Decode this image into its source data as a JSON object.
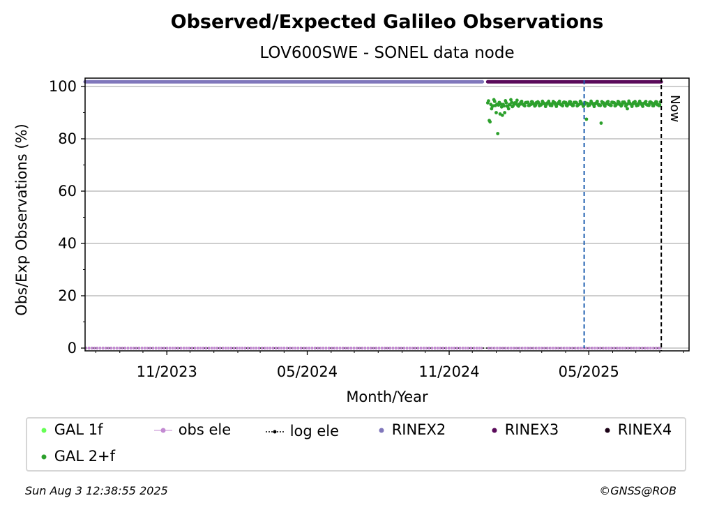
{
  "chart_data": {
    "type": "scatter",
    "title": "Observed/Expected Galileo Observations",
    "subtitle": "LOV600SWE - SONEL data node",
    "xlabel": "Month/Year",
    "ylabel": "Obs/Exp Observations (%)",
    "ylim": [
      0,
      100
    ],
    "xlim": [
      "2023-07-18",
      "2025-09-08"
    ],
    "yticks": [
      0,
      20,
      40,
      60,
      80,
      100
    ],
    "xticks": [
      {
        "date": "2023-11-01",
        "label": "11/2023"
      },
      {
        "date": "2024-05-01",
        "label": "05/2024"
      },
      {
        "date": "2024-11-01",
        "label": "11/2024"
      },
      {
        "date": "2025-05-01",
        "label": "05/2025"
      }
    ],
    "grid": "horizontal",
    "now_label": "Now",
    "now_date": "2025-08-03",
    "event_line_date": "2025-04-25",
    "colors": {
      "gal_1f": "#66ff55",
      "gal_2f": "#2ca02c",
      "obs_ele": "#c38ad2",
      "log_ele": "#000000",
      "rinex2": "#8077bb",
      "rinex3": "#5a0a5a",
      "rinex4": "#1a0015",
      "event_line": "#1f5fb0",
      "now_line": "#000000",
      "grid": "#b0b0b0"
    },
    "rinex_bars": [
      {
        "name": "RINEX2",
        "start": "2023-07-18",
        "end": "2024-12-14",
        "y": 101.8
      },
      {
        "name": "RINEX3",
        "start": "2024-12-21",
        "end": "2025-08-03",
        "y": 101.8
      }
    ],
    "obs_ele": [
      {
        "start": "2023-07-18",
        "end": "2024-12-14",
        "value": 0
      },
      {
        "start": "2024-12-21",
        "end": "2025-08-03",
        "value": 0
      }
    ],
    "log_ele": [
      {
        "start": "2023-07-18",
        "end": "2025-08-03",
        "value": 0
      }
    ],
    "gal_2f": {
      "start": "2024-12-21",
      "end": "2025-08-02",
      "base": 93.4,
      "outliers": [
        {
          "date": "2024-12-23",
          "value": 87
        },
        {
          "date": "2024-12-24",
          "value": 86.5
        },
        {
          "date": "2024-12-26",
          "value": 91.5
        },
        {
          "date": "2025-01-01",
          "value": 90
        },
        {
          "date": "2025-01-03",
          "value": 82
        },
        {
          "date": "2025-01-06",
          "value": 89.5
        },
        {
          "date": "2025-01-09",
          "value": 89
        },
        {
          "date": "2025-01-12",
          "value": 90
        },
        {
          "date": "2025-01-17",
          "value": 91.5
        },
        {
          "date": "2025-04-28",
          "value": 87.5
        },
        {
          "date": "2025-05-17",
          "value": 86
        },
        {
          "date": "2025-06-20",
          "value": 91.5
        }
      ]
    },
    "legend": [
      {
        "key": "gal_1f",
        "label": "GAL 1f",
        "style": "dot"
      },
      {
        "key": "obs_ele",
        "label": "obs ele",
        "style": "line-dot"
      },
      {
        "key": "log_ele",
        "label": "log ele",
        "style": "dotted-dot"
      },
      {
        "key": "rinex2",
        "label": "RINEX2",
        "style": "dot"
      },
      {
        "key": "rinex3",
        "label": "RINEX3",
        "style": "dot"
      },
      {
        "key": "rinex4",
        "label": "RINEX4",
        "style": "dot"
      },
      {
        "key": "gal_2f",
        "label": "GAL 2+f",
        "style": "dot"
      }
    ]
  },
  "footer": {
    "timestamp": "Sun Aug  3 12:38:55 2025",
    "credit": "©GNSS@ROB"
  }
}
